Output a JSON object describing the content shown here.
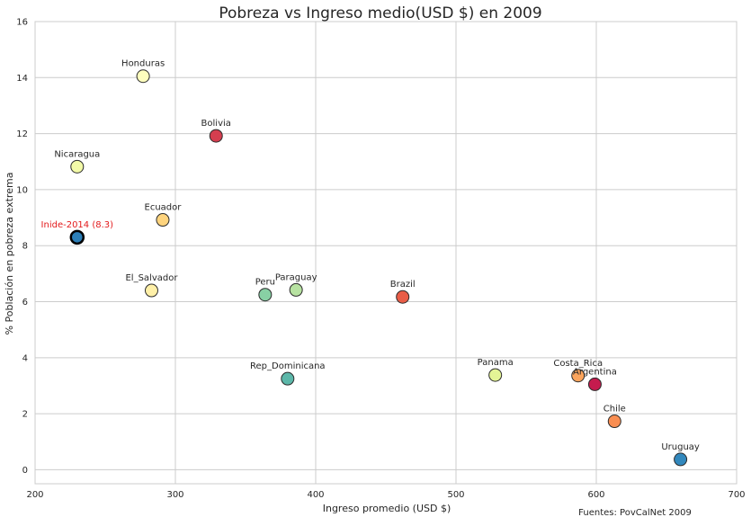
{
  "chart_data": {
    "type": "scatter",
    "title": "Pobreza vs Ingreso medio(USD $) en 2009",
    "xlabel": "Ingreso promedio (USD $)",
    "ylabel": "% Población en pobreza extrema",
    "xlim": [
      200,
      700
    ],
    "ylim": [
      -0.5,
      16
    ],
    "xticks": [
      200,
      300,
      400,
      500,
      600,
      700
    ],
    "yticks": [
      0,
      2,
      4,
      6,
      8,
      10,
      12,
      14,
      16
    ],
    "grid": true,
    "source_note": "Fuentes: PovCalNet 2009",
    "points": [
      {
        "label": "Honduras",
        "x": 277,
        "y": 14.05,
        "color": "#fefebe"
      },
      {
        "label": "Bolivia",
        "x": 329,
        "y": 11.92,
        "color": "#d53e4f"
      },
      {
        "label": "Nicaragua",
        "x": 230,
        "y": 10.82,
        "color": "#f3faa8"
      },
      {
        "label": "Ecuador",
        "x": 291,
        "y": 8.92,
        "color": "#fed47e"
      },
      {
        "label": "Inide-2014 (8.3)",
        "x": 230,
        "y": 8.3,
        "color": "#2c7fb8",
        "highlight": true,
        "label_color": "#e31a1c"
      },
      {
        "label": "El_Salvador",
        "x": 283,
        "y": 6.4,
        "color": "#fff0a8"
      },
      {
        "label": "Peru",
        "x": 364,
        "y": 6.25,
        "color": "#88d0a4"
      },
      {
        "label": "Paraguay",
        "x": 386,
        "y": 6.42,
        "color": "#b7e2a1"
      },
      {
        "label": "Brazil",
        "x": 462,
        "y": 6.17,
        "color": "#e95d47"
      },
      {
        "label": "Rep_Dominicana",
        "x": 380,
        "y": 3.25,
        "color": "#5cb7a9"
      },
      {
        "label": "Panama",
        "x": 528,
        "y": 3.38,
        "color": "#e4f496"
      },
      {
        "label": "Costa_Rica",
        "x": 587,
        "y": 3.36,
        "color": "#fca55d"
      },
      {
        "label": "Argentina",
        "x": 599,
        "y": 3.05,
        "color": "#c51b4e"
      },
      {
        "label": "Chile",
        "x": 613,
        "y": 1.73,
        "color": "#f98e52"
      },
      {
        "label": "Uruguay",
        "x": 660,
        "y": 0.37,
        "color": "#3288bd"
      }
    ]
  }
}
